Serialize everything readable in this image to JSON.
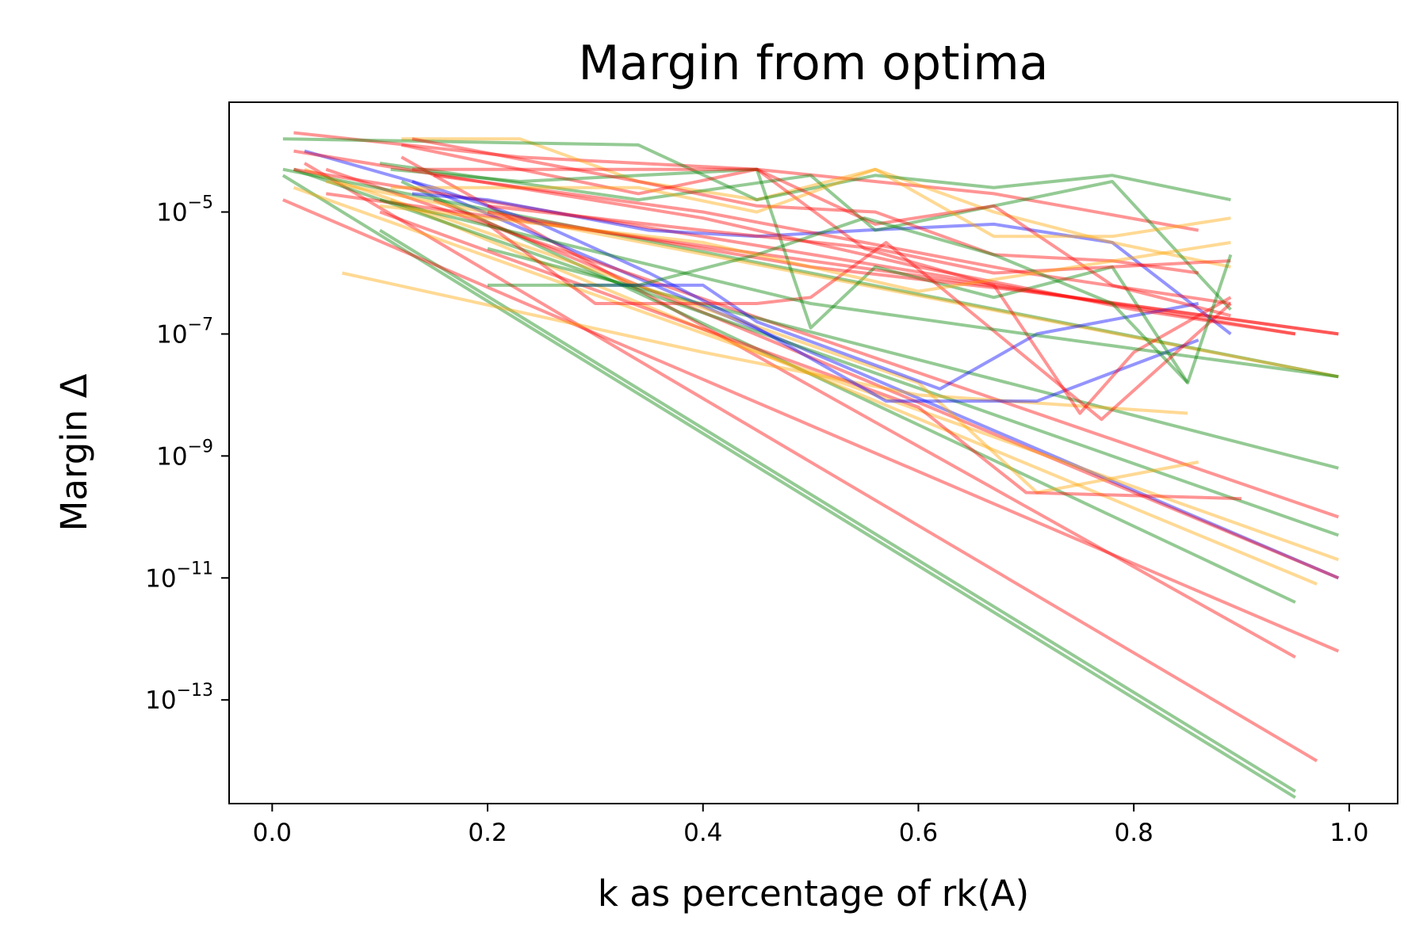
{
  "chart_data": {
    "type": "line",
    "title": "Margin from optima",
    "xlabel": "k as percentage of rk(A)",
    "ylabel": "Margin Δ",
    "xlim": [
      -0.04,
      1.045
    ],
    "ylim_log10": [
      -14.7,
      -3.2
    ],
    "yscale": "log",
    "grid": false,
    "legend": "none",
    "x_ticks": [
      {
        "value": 0.0,
        "label": "0.0"
      },
      {
        "value": 0.2,
        "label": "0.2"
      },
      {
        "value": 0.4,
        "label": "0.4"
      },
      {
        "value": 0.6,
        "label": "0.6"
      },
      {
        "value": 0.8,
        "label": "0.8"
      },
      {
        "value": 1.0,
        "label": "1.0"
      }
    ],
    "y_ticks": [
      {
        "exp": -5,
        "base": "10",
        "sup": "−5"
      },
      {
        "exp": -7,
        "base": "10",
        "sup": "−7"
      },
      {
        "exp": -9,
        "base": "10",
        "sup": "−9"
      },
      {
        "exp": -11,
        "base": "10",
        "sup": "−11"
      },
      {
        "exp": -13,
        "base": "10",
        "sup": "−13"
      }
    ],
    "colors": {
      "red": "#ff0000",
      "green": "#008000",
      "orange": "#ffa500",
      "blue": "#0000ff"
    },
    "series": [
      {
        "color": "green",
        "x": [
          0.01,
          0.95
        ],
        "y": [
          -4.4,
          -14.6
        ]
      },
      {
        "color": "green",
        "x": [
          0.1,
          0.95
        ],
        "y": [
          -5.3,
          -14.5
        ]
      },
      {
        "color": "red",
        "x": [
          0.03,
          0.97
        ],
        "y": [
          -4.2,
          -14.0
        ]
      },
      {
        "color": "red",
        "x": [
          0.01,
          0.99
        ],
        "y": [
          -4.8,
          -12.2
        ]
      },
      {
        "color": "red",
        "x": [
          0.12,
          0.95
        ],
        "y": [
          -4.1,
          -12.3
        ]
      },
      {
        "color": "green",
        "x": [
          0.12,
          0.95
        ],
        "y": [
          -4.5,
          -11.4
        ]
      },
      {
        "color": "orange",
        "x": [
          0.11,
          0.97
        ],
        "y": [
          -4.8,
          -11.1
        ]
      },
      {
        "color": "blue",
        "x": [
          0.13,
          0.99
        ],
        "y": [
          -4.5,
          -11.0
        ]
      },
      {
        "color": "red",
        "x": [
          0.15,
          0.99
        ],
        "y": [
          -4.8,
          -11.0
        ]
      },
      {
        "color": "orange",
        "x": [
          0.02,
          0.99
        ],
        "y": [
          -4.6,
          -10.7
        ]
      },
      {
        "color": "green",
        "x": [
          0.02,
          0.99
        ],
        "y": [
          -4.3,
          -10.3
        ]
      },
      {
        "color": "red",
        "x": [
          0.05,
          0.99
        ],
        "y": [
          -4.3,
          -10.0
        ]
      },
      {
        "color": "green",
        "x": [
          0.2,
          0.99
        ],
        "y": [
          -5.6,
          -9.2
        ]
      },
      {
        "color": "orange",
        "x": [
          0.03,
          0.6,
          0.71,
          0.86
        ],
        "y": [
          -4.3,
          -7.8,
          -9.6,
          -9.1
        ]
      },
      {
        "color": "red",
        "x": [
          0.1,
          0.6,
          0.7,
          0.9
        ],
        "y": [
          -5.0,
          -8.2,
          -9.6,
          -9.7
        ]
      },
      {
        "color": "green",
        "x": [
          0.01,
          0.99
        ],
        "y": [
          -4.3,
          -7.7
        ]
      },
      {
        "color": "orange",
        "x": [
          0.05,
          0.99
        ],
        "y": [
          -4.5,
          -7.7
        ]
      },
      {
        "color": "red",
        "x": [
          0.05,
          0.99
        ],
        "y": [
          -4.7,
          -7.0
        ]
      },
      {
        "color": "red",
        "x": [
          0.02,
          0.95
        ],
        "y": [
          -4.3,
          -7.0
        ]
      },
      {
        "color": "orange",
        "x": [
          0.065,
          0.4,
          0.6,
          0.85
        ],
        "y": [
          -6.0,
          -7.3,
          -8.0,
          -8.3
        ]
      },
      {
        "color": "blue",
        "x": [
          0.03,
          0.15,
          0.25,
          0.35,
          0.45,
          0.57,
          0.6,
          0.71,
          0.86
        ],
        "y": [
          -4.0,
          -4.6,
          -5.2,
          -6.0,
          -6.9,
          -8.1,
          -8.1,
          -8.1,
          -7.1
        ]
      },
      {
        "color": "blue",
        "x": [
          0.13,
          0.2,
          0.35,
          0.45,
          0.55,
          0.67,
          0.78,
          0.89
        ],
        "y": [
          -4.7,
          -4.8,
          -5.3,
          -5.4,
          -5.3,
          -5.2,
          -5.5,
          -7.0
        ]
      },
      {
        "color": "blue",
        "x": [
          0.28,
          0.4,
          0.45,
          0.62,
          0.71,
          0.86
        ],
        "y": [
          -6.2,
          -6.2,
          -6.8,
          -7.9,
          -7.0,
          -6.5
        ]
      },
      {
        "color": "red",
        "x": [
          0.02,
          0.23,
          0.45,
          0.67,
          0.86
        ],
        "y": [
          -3.7,
          -4.1,
          -4.3,
          -4.7,
          -5.3
        ]
      },
      {
        "color": "orange",
        "x": [
          0.12,
          0.23,
          0.34,
          0.45,
          0.56,
          0.67,
          0.78,
          0.89
        ],
        "y": [
          -3.8,
          -3.8,
          -4.5,
          -4.8,
          -4.3,
          -5.0,
          -5.5,
          -5.9
        ]
      },
      {
        "color": "green",
        "x": [
          0.01,
          0.34,
          0.45,
          0.56,
          0.67,
          0.78,
          0.89
        ],
        "y": [
          -3.8,
          -3.9,
          -4.8,
          -4.4,
          -4.6,
          -4.4,
          -4.8
        ]
      },
      {
        "color": "red",
        "x": [
          0.12,
          0.34,
          0.45,
          0.55,
          0.67,
          0.75,
          0.8,
          0.89
        ],
        "y": [
          -3.9,
          -4.7,
          -4.3,
          -5.6,
          -6.2,
          -8.3,
          -7.3,
          -6.4
        ]
      },
      {
        "color": "green",
        "x": [
          0.11,
          0.23,
          0.45,
          0.5,
          0.56,
          0.67,
          0.78,
          0.85
        ],
        "y": [
          -4.3,
          -4.5,
          -4.3,
          -6.9,
          -5.9,
          -6.4,
          -5.9,
          -7.8
        ]
      },
      {
        "color": "green",
        "x": [
          0.1,
          0.34,
          0.5,
          0.56,
          0.78,
          0.89
        ],
        "y": [
          -4.2,
          -4.8,
          -4.4,
          -5.3,
          -4.5,
          -6.6
        ]
      },
      {
        "color": "red",
        "x": [
          0.13,
          0.34,
          0.45,
          0.56,
          0.67,
          0.78,
          0.86
        ],
        "y": [
          -3.8,
          -4.5,
          -4.9,
          -5.0,
          -5.7,
          -5.8,
          -6.0
        ]
      },
      {
        "color": "red",
        "x": [
          0.13,
          0.45,
          0.56,
          0.67,
          0.78,
          0.89
        ],
        "y": [
          -4.3,
          -4.3,
          -5.2,
          -4.9,
          -6.2,
          -6.7
        ]
      },
      {
        "color": "red",
        "x": [
          0.15,
          0.4,
          0.55,
          0.7,
          0.89
        ],
        "y": [
          -4.4,
          -5.0,
          -5.5,
          -6.0,
          -6.5
        ]
      },
      {
        "color": "orange",
        "x": [
          0.11,
          0.34,
          0.45,
          0.56,
          0.67,
          0.78,
          0.89
        ],
        "y": [
          -4.6,
          -4.6,
          -5.0,
          -4.3,
          -5.4,
          -5.4,
          -5.1
        ]
      },
      {
        "color": "red",
        "x": [
          0.2,
          0.4,
          0.56,
          0.67,
          0.78,
          0.89
        ],
        "y": [
          -4.9,
          -5.3,
          -5.6,
          -6.0,
          -5.9,
          -5.8
        ]
      },
      {
        "color": "red",
        "x": [
          0.2,
          0.3,
          0.45,
          0.5,
          0.57,
          0.77,
          0.89
        ],
        "y": [
          -5.2,
          -6.5,
          -6.5,
          -6.4,
          -5.5,
          -8.4,
          -6.5
        ]
      },
      {
        "color": "red",
        "x": [
          0.02,
          0.4,
          0.6,
          0.8,
          0.95
        ],
        "y": [
          -4.0,
          -5.1,
          -5.9,
          -6.6,
          -7.0
        ]
      },
      {
        "color": "red",
        "x": [
          0.2,
          0.5,
          0.7,
          0.99
        ],
        "y": [
          -5.0,
          -5.9,
          -6.3,
          -7.0
        ]
      },
      {
        "color": "green",
        "x": [
          0.2,
          0.34,
          0.45,
          0.55,
          0.67,
          0.78,
          0.85,
          0.89
        ],
        "y": [
          -6.2,
          -6.2,
          -5.7,
          -5.1,
          -5.7,
          -6.5,
          -7.8,
          -5.7
        ]
      },
      {
        "color": "green",
        "x": [
          0.1,
          0.5,
          0.7,
          0.99
        ],
        "y": [
          -4.8,
          -6.5,
          -7.0,
          -7.7
        ]
      },
      {
        "color": "orange",
        "x": [
          0.1,
          0.4,
          0.6,
          0.89
        ],
        "y": [
          -4.9,
          -5.5,
          -6.3,
          -5.5
        ]
      }
    ]
  }
}
